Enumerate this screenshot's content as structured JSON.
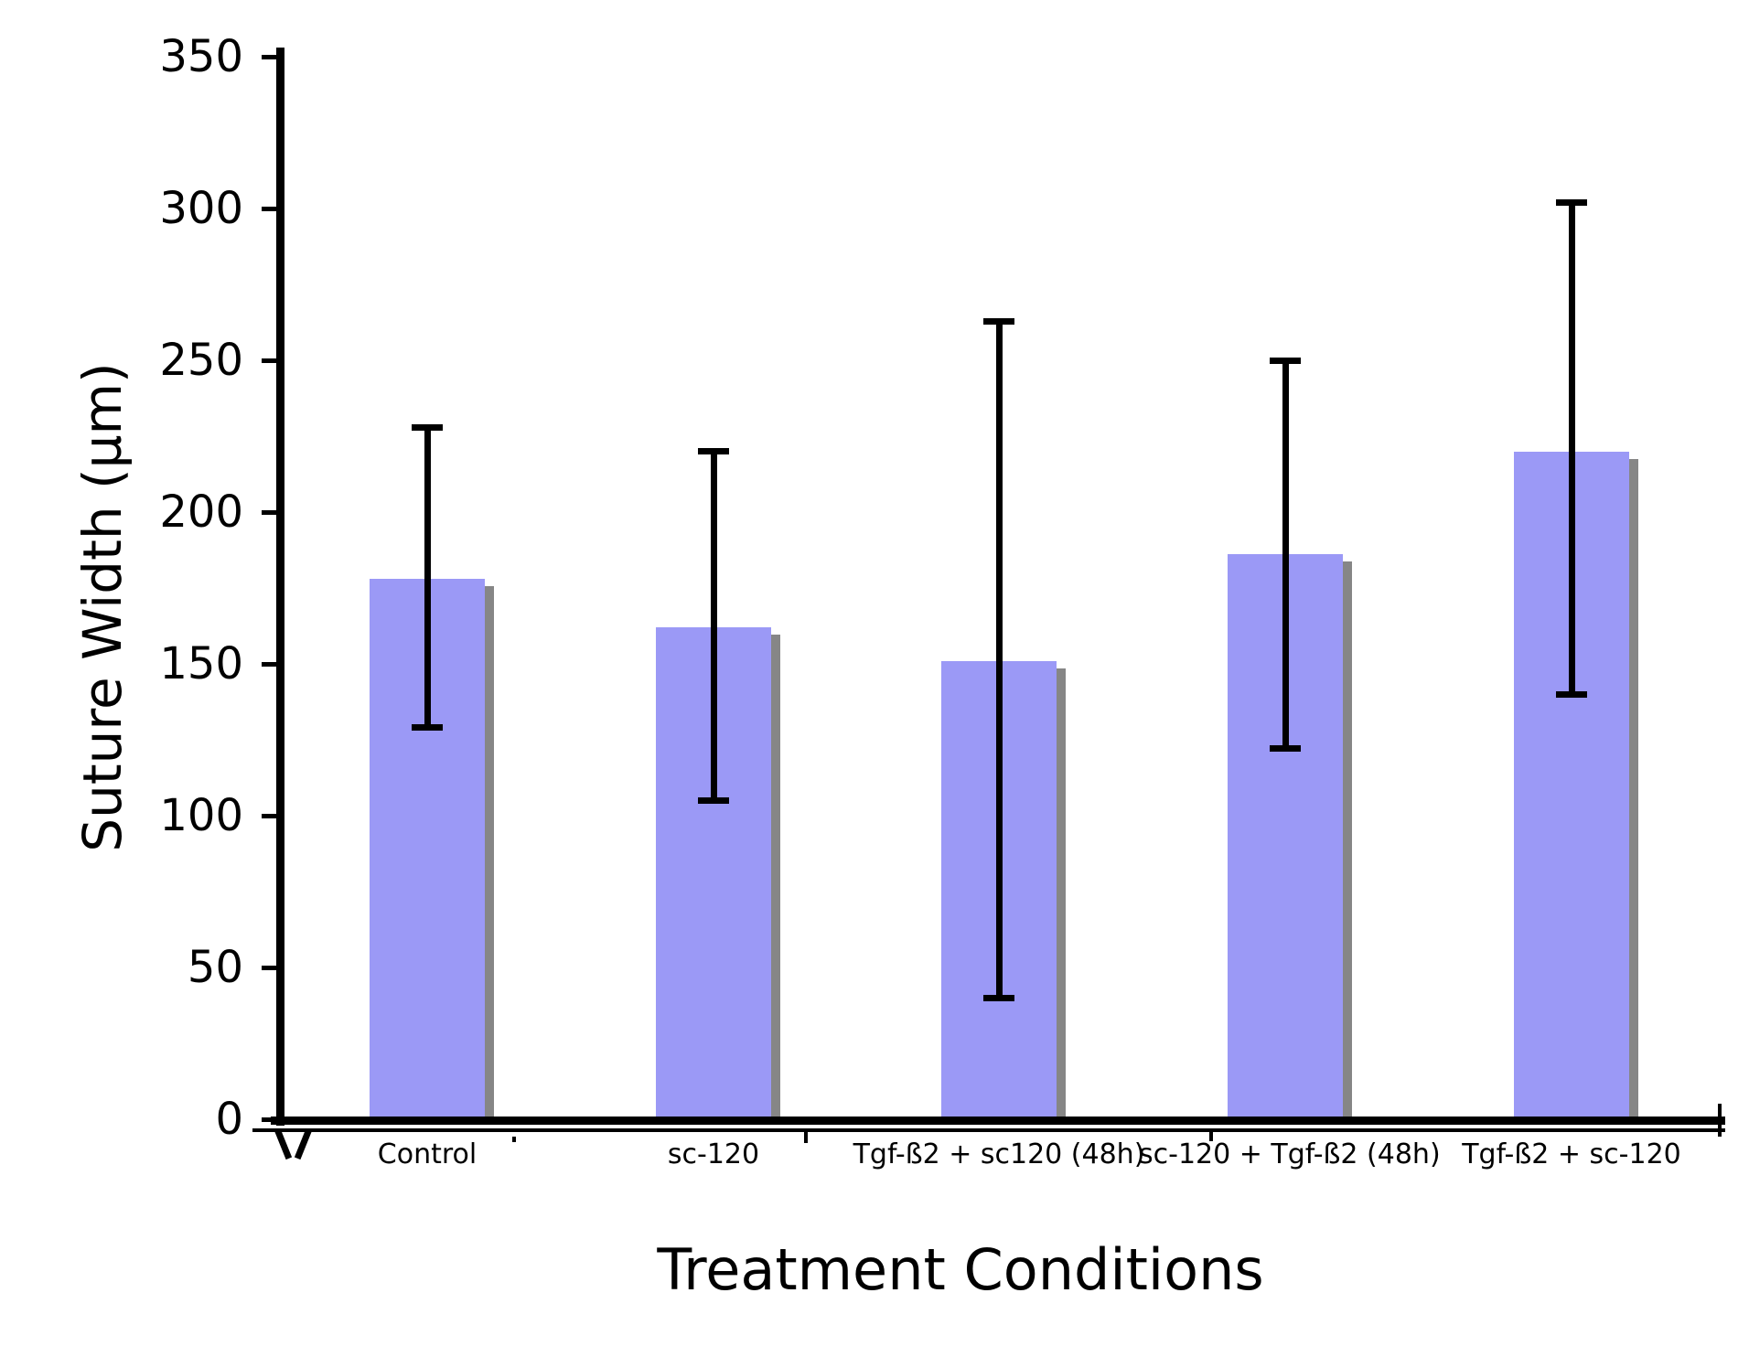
{
  "figure": {
    "background": "#ffffff"
  },
  "chart_data": {
    "type": "bar",
    "title": "",
    "xlabel": "Treatment Conditions",
    "ylabel": "Suture Width (µm)",
    "categories": [
      "Control",
      "sc-120",
      "Tgf-ß2 + sc120 (48h)",
      "sc-120 + Tgf-ß2 (48h)",
      "Tgf-ß2 + sc-120"
    ],
    "values": [
      178,
      162,
      151,
      186,
      220
    ],
    "error_low": [
      128,
      104,
      39,
      121,
      139
    ],
    "error_high": [
      229,
      221,
      264,
      251,
      303
    ],
    "ylim": [
      0,
      350
    ],
    "yticks": [
      0,
      50,
      100,
      150,
      200,
      250,
      300,
      350
    ],
    "grid": false,
    "legend": null,
    "bar_color": "#9b99f6",
    "bar_shadow_color": "#868686",
    "axis_color": "#000000",
    "error_bar_color": "#000000"
  }
}
